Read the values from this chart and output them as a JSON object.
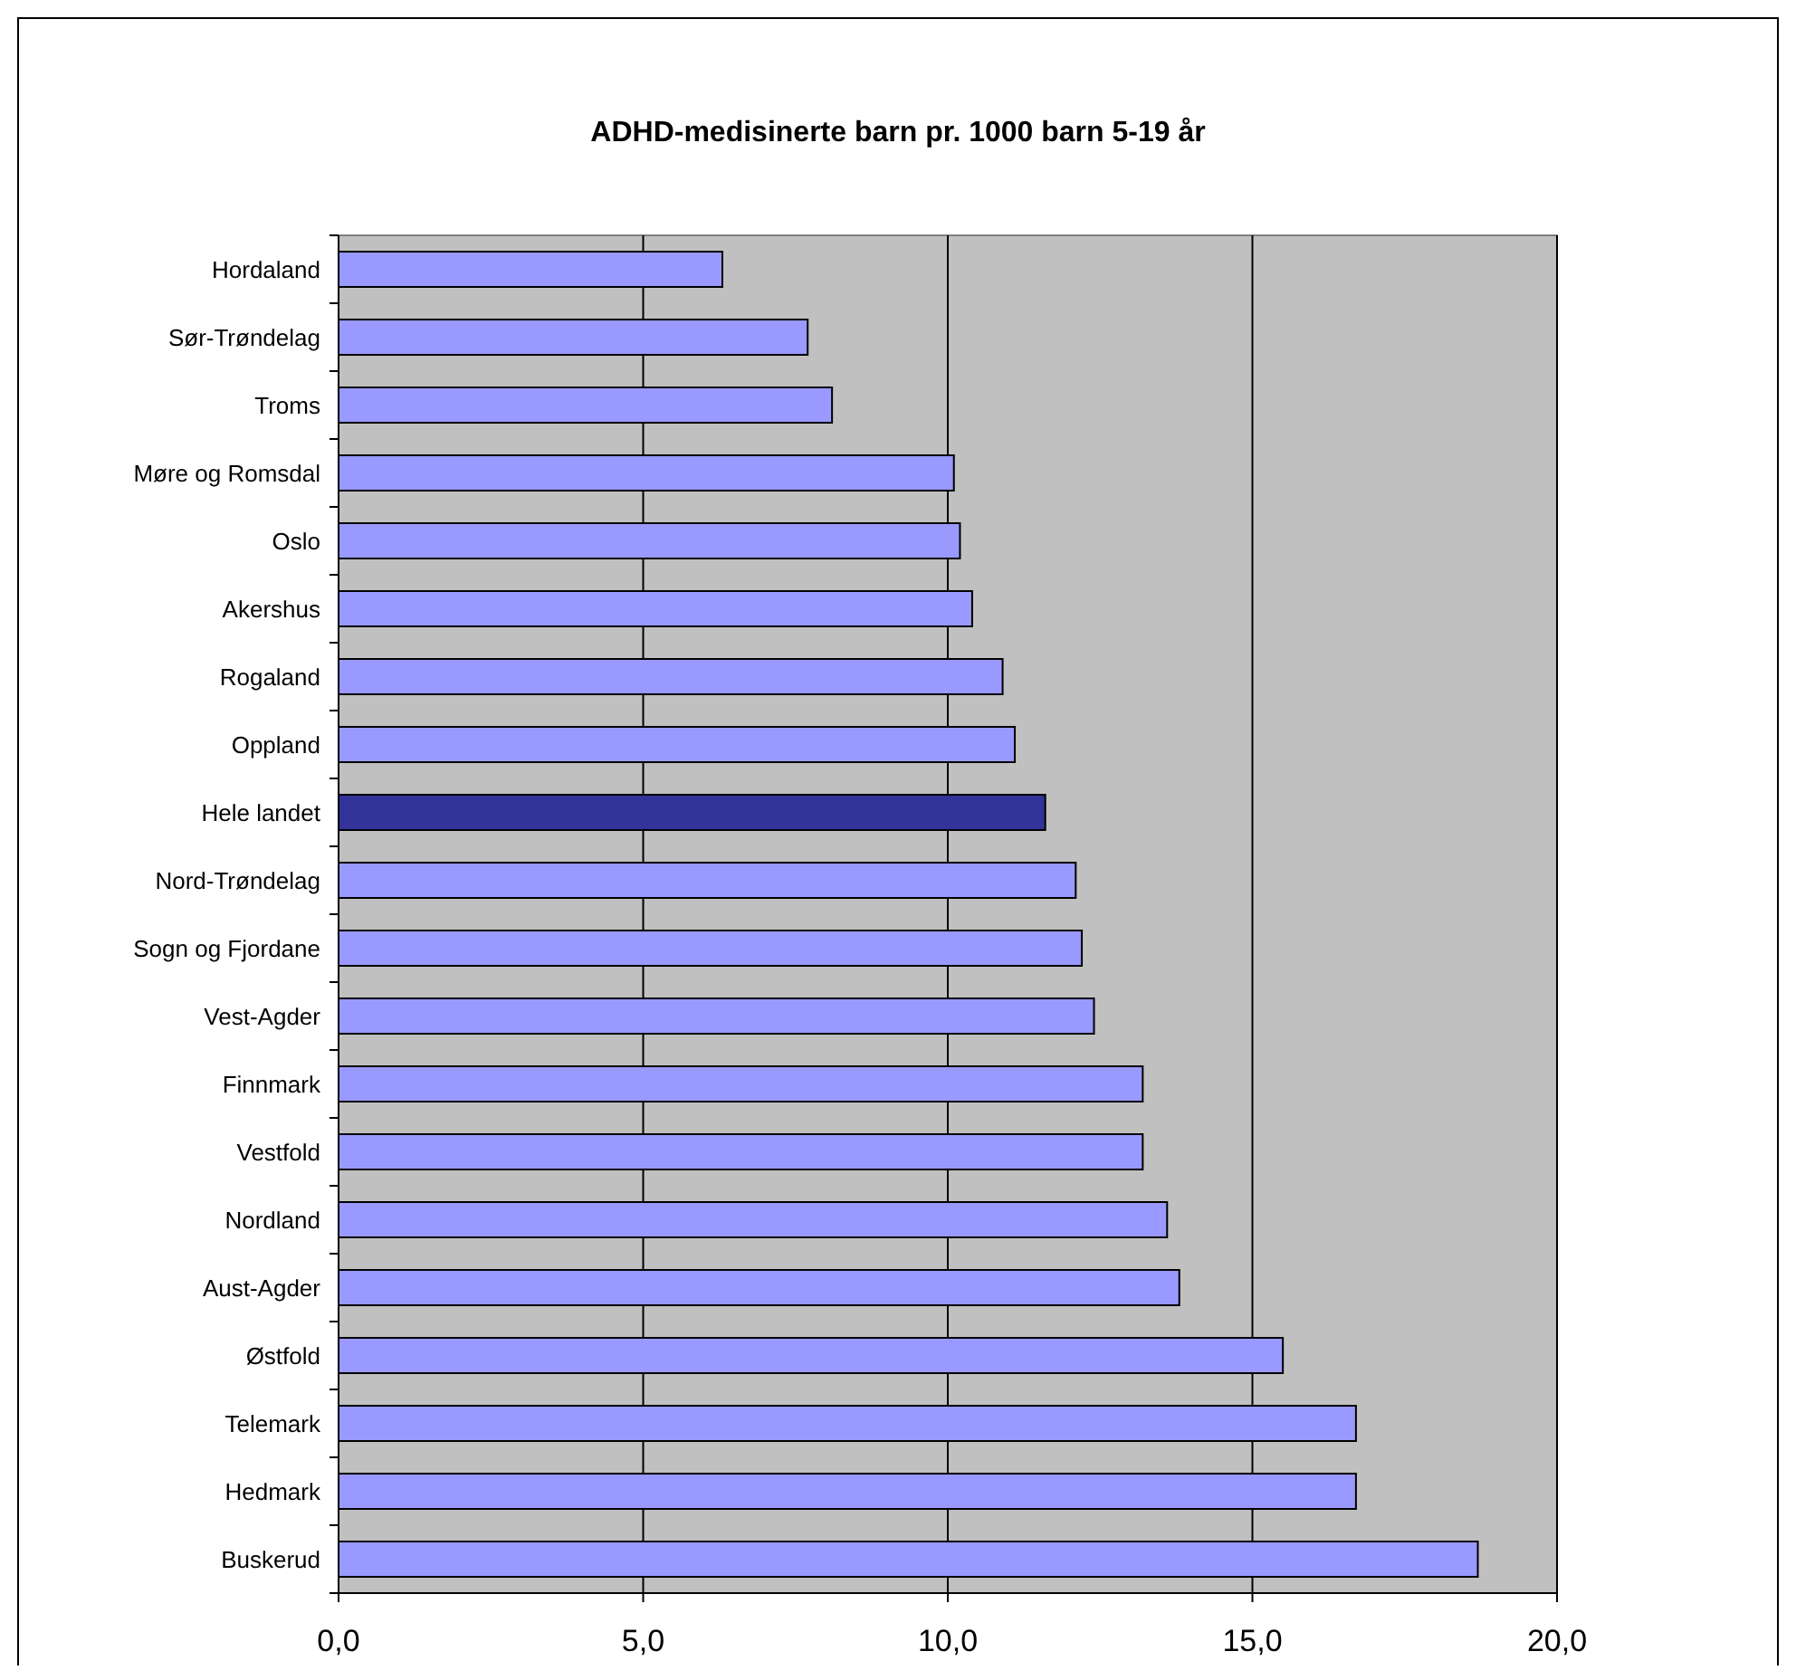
{
  "chart_data": {
    "type": "bar",
    "orientation": "horizontal",
    "title": "ADHD-medisinerte barn pr. 1000 barn 5-19 år",
    "categories": [
      "Hordaland",
      "Sør-Trøndelag",
      "Troms",
      "Møre og Romsdal",
      "Oslo",
      "Akershus",
      "Rogaland",
      "Oppland",
      "Hele landet",
      "Nord-Trøndelag",
      "Sogn og Fjordane",
      "Vest-Agder",
      "Finnmark",
      "Vestfold",
      "Nordland",
      "Aust-Agder",
      "Østfold",
      "Telemark",
      "Hedmark",
      "Buskerud"
    ],
    "values": [
      6.3,
      7.7,
      8.1,
      10.1,
      10.2,
      10.4,
      10.9,
      11.1,
      11.6,
      12.1,
      12.2,
      12.4,
      13.2,
      13.2,
      13.6,
      13.8,
      15.5,
      16.7,
      16.7,
      18.7
    ],
    "colors": [
      "#9999ff",
      "#9999ff",
      "#9999ff",
      "#9999ff",
      "#9999ff",
      "#9999ff",
      "#9999ff",
      "#9999ff",
      "#333399",
      "#9999ff",
      "#9999ff",
      "#9999ff",
      "#9999ff",
      "#9999ff",
      "#9999ff",
      "#9999ff",
      "#9999ff",
      "#9999ff",
      "#9999ff",
      "#9999ff"
    ],
    "xlim": [
      0,
      20
    ],
    "xticks": [
      {
        "value": 0,
        "label": "0,0"
      },
      {
        "value": 5,
        "label": "5,0"
      },
      {
        "value": 10,
        "label": "10,0"
      },
      {
        "value": 15,
        "label": "15,0"
      },
      {
        "value": 20,
        "label": "20,0"
      }
    ],
    "grid": "x"
  }
}
